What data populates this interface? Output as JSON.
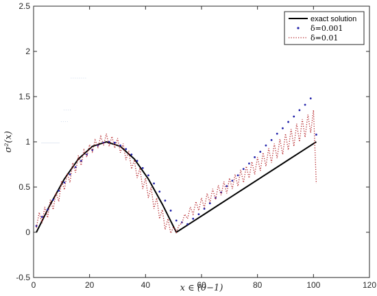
{
  "chart_data": {
    "type": "line",
    "xlabel": "x ∈ (0−1)",
    "ylabel": "σ²(x)",
    "xlim": [
      0,
      120
    ],
    "ylim": [
      -0.5,
      2.5
    ],
    "x_ticks": [
      "0",
      "20",
      "40",
      "60",
      "80",
      "100",
      "120"
    ],
    "y_ticks": [
      "-0.5",
      "0",
      "0.5",
      "1",
      "1.5",
      "2",
      "2.5"
    ],
    "x_tick_values": [
      0,
      20,
      40,
      60,
      80,
      100,
      120
    ],
    "y_tick_values": [
      -0.5,
      0,
      0.5,
      1,
      1.5,
      2,
      2.5
    ],
    "grid": false,
    "legend_position": "top-right",
    "series": [
      {
        "name": "exact solution",
        "style": "solid",
        "color": "#000000",
        "x": [
          1,
          6,
          11,
          16,
          21,
          26,
          31,
          36,
          41,
          46,
          51,
          56,
          61,
          66,
          71,
          76,
          81,
          86,
          91,
          96,
          101
        ],
        "y": [
          0,
          0.31,
          0.59,
          0.81,
          0.95,
          1.0,
          0.95,
          0.81,
          0.59,
          0.31,
          0,
          0.1,
          0.2,
          0.3,
          0.4,
          0.5,
          0.6,
          0.7,
          0.8,
          0.9,
          1.0
        ]
      },
      {
        "name": "δ=0.001",
        "style": "dots",
        "color": "#1f1fa8",
        "x": [
          1,
          3,
          5,
          7,
          9,
          11,
          13,
          15,
          17,
          19,
          21,
          23,
          25,
          27,
          29,
          31,
          33,
          35,
          37,
          39,
          41,
          43,
          45,
          47,
          49,
          51,
          53,
          55,
          57,
          59,
          61,
          63,
          65,
          67,
          69,
          71,
          73,
          75,
          77,
          79,
          81,
          83,
          85,
          87,
          89,
          91,
          93,
          95,
          97,
          99,
          101
        ],
        "y": [
          0.07,
          0.17,
          0.25,
          0.36,
          0.46,
          0.55,
          0.64,
          0.72,
          0.79,
          0.86,
          0.91,
          0.96,
          0.99,
          1.0,
          0.99,
          0.96,
          0.92,
          0.86,
          0.79,
          0.71,
          0.63,
          0.54,
          0.45,
          0.35,
          0.24,
          0.13,
          0.11,
          0.09,
          0.15,
          0.2,
          0.26,
          0.32,
          0.38,
          0.44,
          0.51,
          0.57,
          0.63,
          0.7,
          0.76,
          0.83,
          0.89,
          0.96,
          1.02,
          1.09,
          1.15,
          1.22,
          1.28,
          1.35,
          1.41,
          1.48,
          1.08
        ]
      },
      {
        "name": "δ=0.01",
        "style": "dotted",
        "color": "#b5262a",
        "x": [
          1,
          2,
          3,
          4,
          5,
          6,
          7,
          8,
          9,
          10,
          11,
          12,
          13,
          14,
          15,
          16,
          17,
          18,
          19,
          20,
          21,
          22,
          23,
          24,
          25,
          26,
          27,
          28,
          29,
          30,
          31,
          32,
          33,
          34,
          35,
          36,
          37,
          38,
          39,
          40,
          41,
          42,
          43,
          44,
          45,
          46,
          47,
          48,
          49,
          50,
          51,
          52,
          53,
          54,
          55,
          56,
          57,
          58,
          59,
          60,
          61,
          62,
          63,
          64,
          65,
          66,
          67,
          68,
          69,
          70,
          71,
          72,
          73,
          74,
          75,
          76,
          77,
          78,
          79,
          80,
          81,
          82,
          83,
          84,
          85,
          86,
          87,
          88,
          89,
          90,
          91,
          92,
          93,
          94,
          95,
          96,
          97,
          98,
          99,
          100,
          101
        ],
        "y": [
          0.05,
          0.22,
          0.1,
          0.28,
          0.16,
          0.36,
          0.25,
          0.44,
          0.34,
          0.57,
          0.47,
          0.65,
          0.55,
          0.77,
          0.66,
          0.85,
          0.74,
          0.91,
          0.83,
          0.97,
          0.89,
          1.02,
          0.94,
          1.06,
          0.96,
          1.09,
          0.95,
          1.06,
          0.93,
          1.04,
          0.88,
          0.98,
          0.8,
          0.9,
          0.7,
          0.8,
          0.6,
          0.71,
          0.48,
          0.6,
          0.38,
          0.5,
          0.26,
          0.38,
          0.15,
          0.25,
          0.03,
          0.15,
          -0.01,
          0.06,
          0.0,
          0.08,
          0.1,
          0.2,
          0.15,
          0.28,
          0.2,
          0.34,
          0.24,
          0.38,
          0.27,
          0.43,
          0.33,
          0.48,
          0.36,
          0.52,
          0.41,
          0.56,
          0.43,
          0.6,
          0.48,
          0.64,
          0.51,
          0.69,
          0.55,
          0.73,
          0.6,
          0.78,
          0.64,
          0.83,
          0.68,
          0.88,
          0.73,
          0.93,
          0.77,
          0.98,
          0.82,
          1.03,
          0.86,
          1.09,
          0.91,
          1.14,
          0.95,
          1.2,
          1.0,
          1.25,
          1.05,
          1.3,
          1.1,
          1.35,
          0.54
        ]
      }
    ],
    "legend": {
      "entries": [
        "exact solution",
        "δ=0.001",
        "δ=0.01"
      ]
    },
    "artifacts": {
      "ghost_text": [
        {
          "x": 6,
          "y": 0.97,
          "text": "———"
        },
        {
          "x": 16,
          "y": 1.7,
          "text": "‥‥‥‥"
        },
        {
          "x": 12,
          "y": 1.35,
          "text": "‥‥"
        },
        {
          "x": 11,
          "y": 1.22,
          "text": "‥‥"
        }
      ]
    }
  }
}
